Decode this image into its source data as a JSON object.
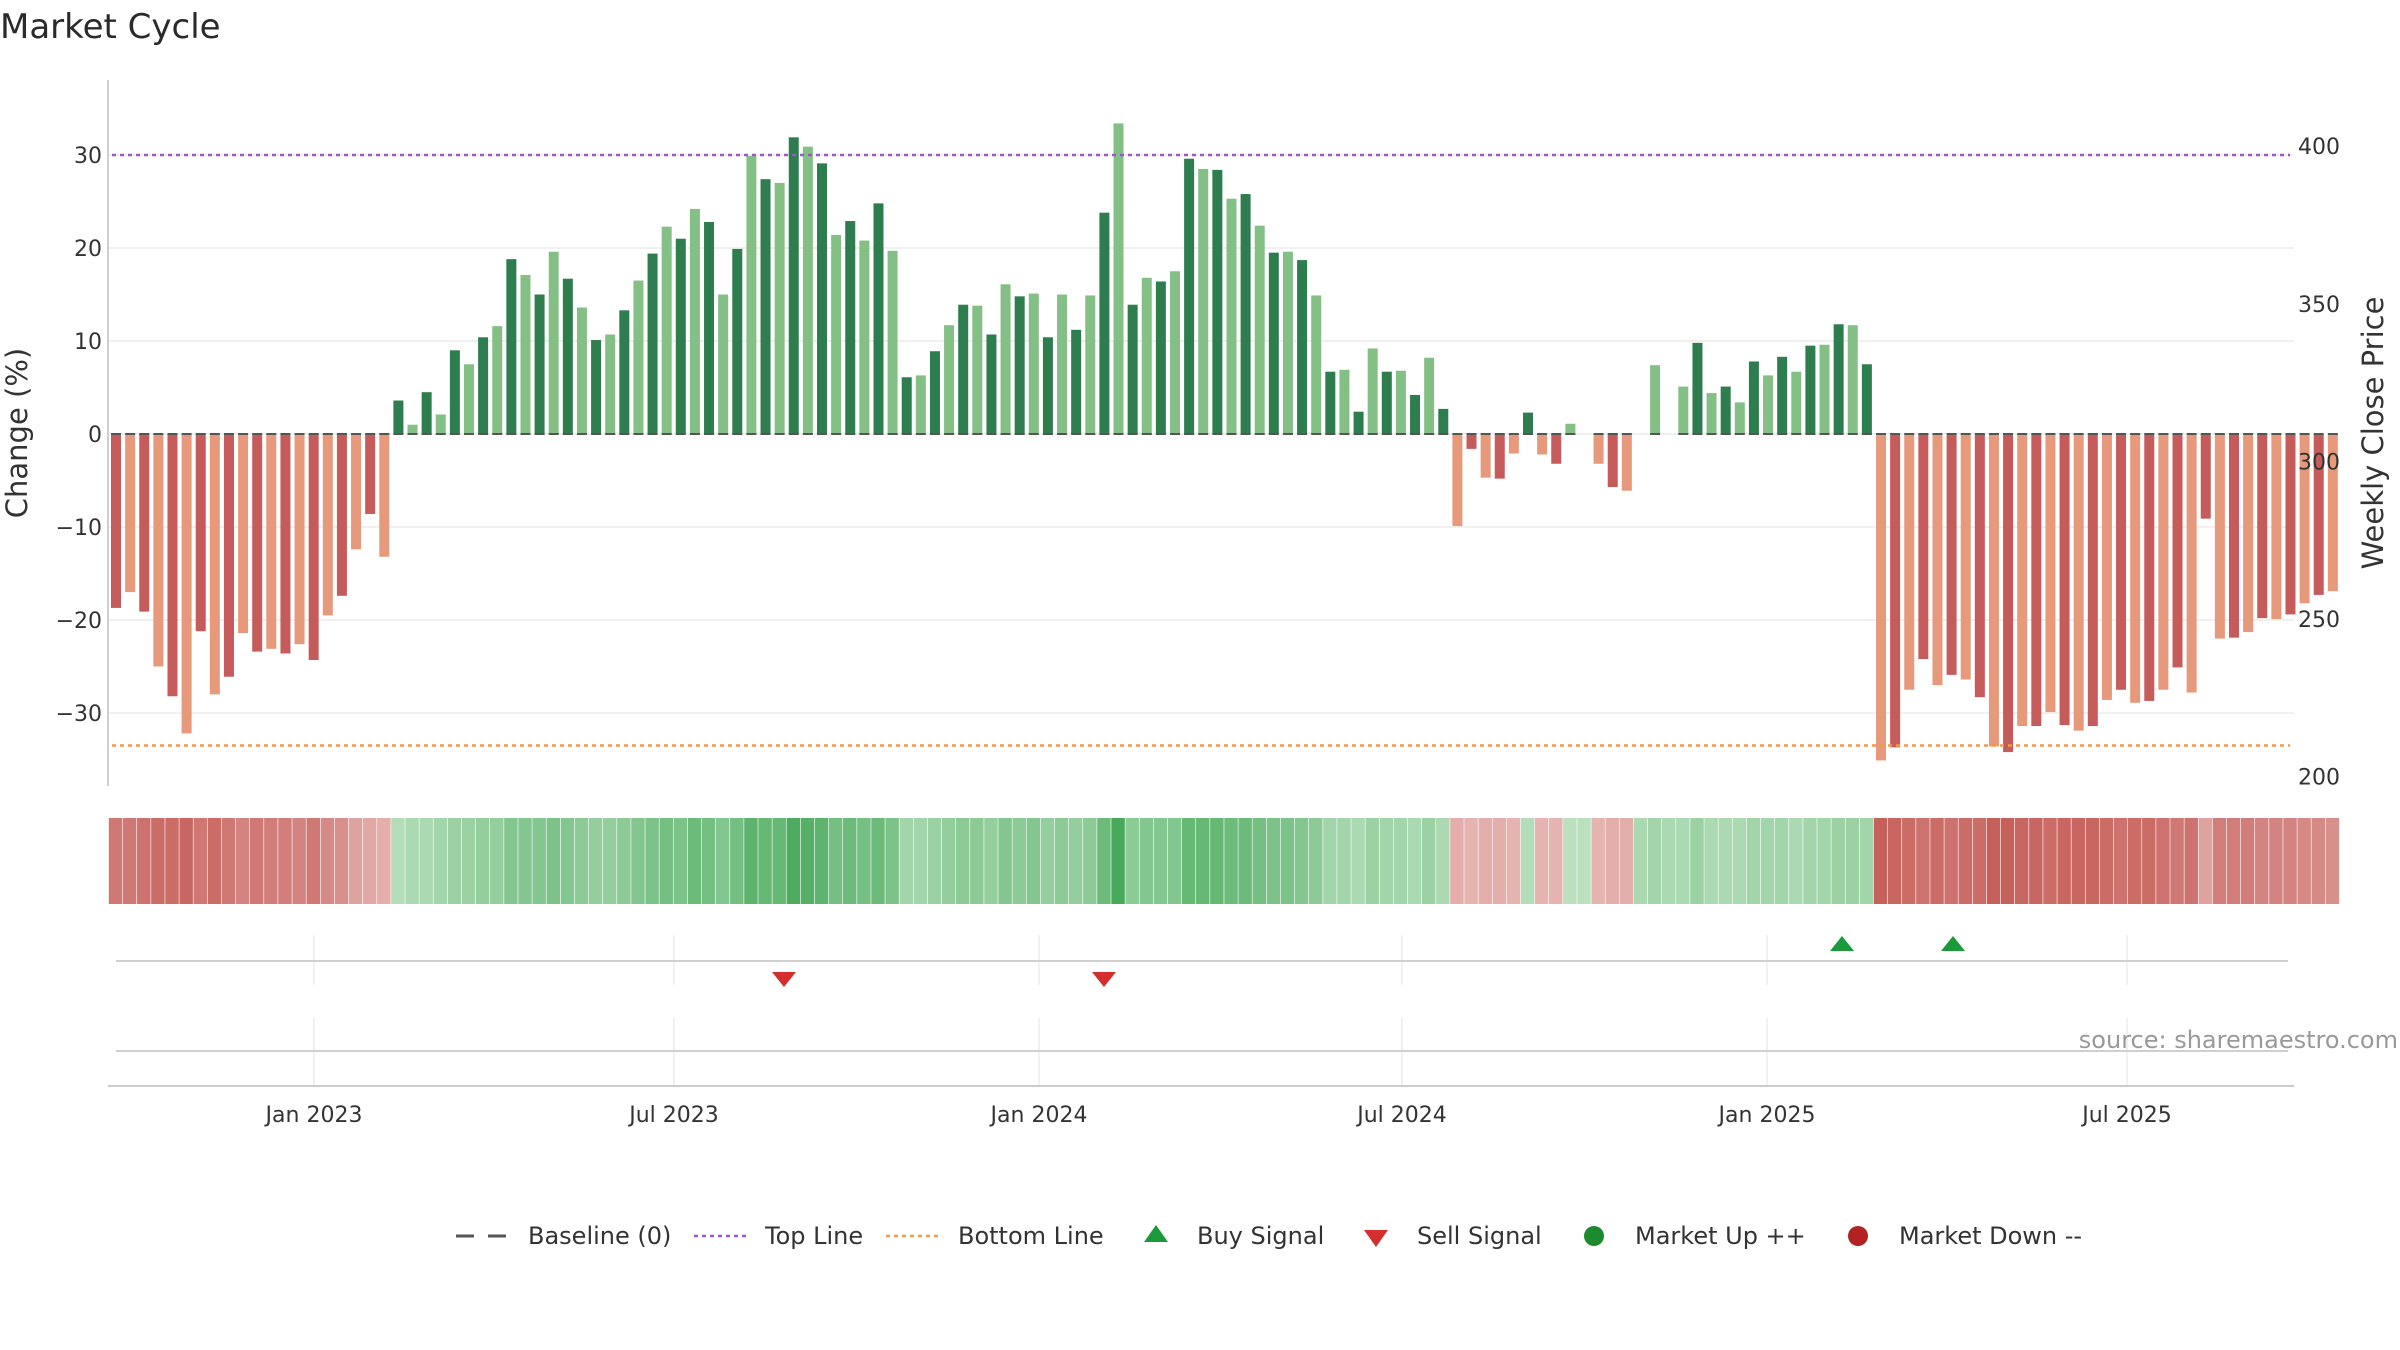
{
  "chart_data": {
    "type": "bar",
    "title": "Market Cycle",
    "ylabel": "Change (%)",
    "ylabel_right": "Weekly Close Price",
    "ylim": [
      -38,
      38
    ],
    "ylim_right": [
      197,
      421
    ],
    "yticks": [
      -30,
      -20,
      -10,
      0,
      10,
      20,
      30
    ],
    "yticks_right": [
      200,
      250,
      300,
      350,
      400
    ],
    "top_line": 30,
    "bottom_line": -33.5,
    "x_ticks": [
      "Jan 2023",
      "Jul 2023",
      "Jan 2024",
      "Jul 2024",
      "Jan 2025",
      "Jul 2025"
    ],
    "grid": true,
    "legend_position": "bottom",
    "values": [
      -18.7,
      -17,
      -19.1,
      -25,
      -28.2,
      -32.2,
      -21.2,
      -28,
      -26.1,
      -21.4,
      -23.4,
      -23.1,
      -23.6,
      -22.6,
      -24.3,
      -19.5,
      -17.4,
      -12.4,
      -8.6,
      -13.2,
      3.6,
      1,
      4.5,
      2.1,
      9,
      7.5,
      10.4,
      11.6,
      18.8,
      17.1,
      15,
      19.6,
      16.7,
      13.6,
      10.1,
      10.7,
      13.3,
      16.5,
      19.4,
      22.3,
      21,
      24.2,
      22.8,
      15,
      19.9,
      29.9,
      27.4,
      27,
      31.9,
      30.9,
      29.1,
      21.4,
      22.9,
      20.8,
      24.8,
      19.7,
      6.1,
      6.3,
      8.9,
      11.7,
      13.9,
      13.8,
      10.7,
      16.1,
      14.8,
      15.1,
      10.4,
      15,
      11.2,
      14.9,
      23.8,
      33.4,
      13.9,
      16.8,
      16.4,
      17.5,
      29.6,
      28.5,
      28.4,
      25.3,
      25.8,
      22.4,
      19.5,
      19.6,
      18.7,
      14.9,
      6.7,
      6.9,
      2.4,
      9.2,
      6.7,
      6.8,
      4.2,
      8.2,
      2.7,
      -9.9,
      -1.6,
      -4.7,
      -4.8,
      -2.1,
      2.3,
      -2.2,
      -3.2,
      1.1,
      0,
      -3.2,
      -5.7,
      -6.1,
      0,
      7.4,
      0,
      5.1,
      9.8,
      4.4,
      5.1,
      3.4,
      7.8,
      6.3,
      8.3,
      6.7,
      9.5,
      9.6,
      11.8,
      11.7,
      7.5,
      -35.1,
      -33.7,
      -27.5,
      -24.2,
      -27,
      -25.9,
      -26.4,
      -28.3,
      -33.6,
      -34.2,
      -31.4,
      -31.4,
      -29.9,
      -31.3,
      -31.9,
      -31.4,
      -28.6,
      -27.5,
      -28.9,
      -28.7,
      -27.5,
      -25.1,
      -27.8,
      -9.1,
      -22,
      -21.9,
      -21.3,
      -19.8,
      -19.9,
      -19.4,
      -18.2,
      -17.3,
      -16.9
    ],
    "cycle_strength": [
      0.75,
      0.75,
      0.8,
      0.85,
      0.85,
      0.9,
      0.75,
      0.85,
      0.75,
      0.65,
      0.75,
      0.7,
      0.7,
      0.65,
      0.75,
      0.6,
      0.55,
      0.4,
      0.35,
      0.3,
      0.25,
      0.3,
      0.3,
      0.35,
      0.4,
      0.4,
      0.45,
      0.45,
      0.55,
      0.55,
      0.55,
      0.6,
      0.55,
      0.5,
      0.45,
      0.45,
      0.5,
      0.55,
      0.6,
      0.65,
      0.6,
      0.7,
      0.65,
      0.55,
      0.65,
      0.8,
      0.75,
      0.75,
      0.9,
      0.85,
      0.8,
      0.65,
      0.7,
      0.65,
      0.7,
      0.6,
      0.35,
      0.35,
      0.4,
      0.45,
      0.5,
      0.5,
      0.45,
      0.55,
      0.5,
      0.55,
      0.45,
      0.5,
      0.45,
      0.5,
      0.7,
      0.95,
      0.5,
      0.55,
      0.55,
      0.55,
      0.75,
      0.75,
      0.75,
      0.7,
      0.7,
      0.65,
      0.6,
      0.6,
      0.55,
      0.5,
      0.35,
      0.35,
      0.3,
      0.4,
      0.35,
      0.35,
      0.3,
      0.4,
      0.3,
      0.3,
      0.25,
      0.3,
      0.3,
      0.25,
      0.25,
      0.25,
      0.25,
      0.2,
      0.2,
      0.25,
      0.3,
      0.3,
      0.3,
      0.35,
      0.3,
      0.3,
      0.4,
      0.3,
      0.3,
      0.3,
      0.35,
      0.35,
      0.35,
      0.3,
      0.35,
      0.35,
      0.4,
      0.4,
      0.35,
      0.95,
      0.9,
      0.85,
      0.8,
      0.85,
      0.8,
      0.85,
      0.85,
      0.95,
      0.95,
      0.9,
      0.9,
      0.85,
      0.9,
      0.9,
      0.9,
      0.85,
      0.8,
      0.85,
      0.85,
      0.8,
      0.75,
      0.8,
      0.4,
      0.7,
      0.7,
      0.7,
      0.65,
      0.65,
      0.65,
      0.6,
      0.6,
      0.55
    ],
    "buy_signals": [
      0.1,
      0.0
    ],
    "sell_signals": [
      0.0,
      0.0
    ],
    "legend": [
      "Baseline (0)",
      "Top Line",
      "Bottom Line",
      "Buy Signal",
      "Sell Signal",
      "Market Up ++",
      "Market Down --"
    ],
    "source": "source: sharemaestro.com",
    "colors": {
      "up_dark": "#2e7d4f",
      "up_light": "#84c085",
      "down_dark": "#c65b5b",
      "down_light": "#e69a7b",
      "top_line": "#9b59c8",
      "bottom_line": "#ef9a4c",
      "buy": "#1a9a3a",
      "sell": "#d32f2f",
      "market_up": "#1e8a2e",
      "market_down": "#b22222",
      "baseline": "#555555"
    }
  }
}
